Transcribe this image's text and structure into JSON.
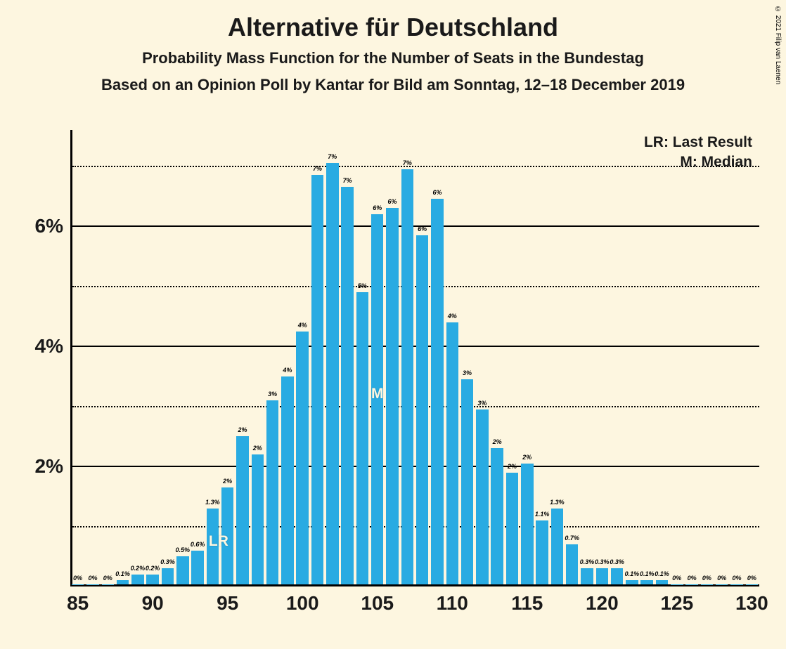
{
  "copyright": "© 2021 Filip van Laenen",
  "titles": {
    "main": "Alternative für Deutschland",
    "sub1": "Probability Mass Function for the Number of Seats in the Bundestag",
    "sub2": "Based on an Opinion Poll by Kantar for Bild am Sonntag, 12–18 December 2019"
  },
  "legend": {
    "lr": "LR: Last Result",
    "m": "M: Median"
  },
  "chart": {
    "type": "bar",
    "bar_color": "#29abe2",
    "background_color": "#fdf6e0",
    "text_color": "#1a1a1a",
    "x_min": 84.5,
    "x_max": 130.5,
    "y_min": 0,
    "y_max": 7.6,
    "y_major_ticks": [
      2,
      4,
      6
    ],
    "y_minor_ticks": [
      1,
      3,
      5,
      7
    ],
    "x_ticks": [
      85,
      90,
      95,
      100,
      105,
      110,
      115,
      120,
      125,
      130
    ],
    "bar_width_ratio": 0.82,
    "bars": [
      {
        "x": 85,
        "v": 0.001,
        "l": "0%"
      },
      {
        "x": 86,
        "v": 0.001,
        "l": "0%"
      },
      {
        "x": 87,
        "v": 0.03,
        "l": "0%"
      },
      {
        "x": 88,
        "v": 0.1,
        "l": "0.1%"
      },
      {
        "x": 89,
        "v": 0.2,
        "l": "0.2%"
      },
      {
        "x": 90,
        "v": 0.2,
        "l": "0.2%"
      },
      {
        "x": 91,
        "v": 0.3,
        "l": "0.3%"
      },
      {
        "x": 92,
        "v": 0.5,
        "l": "0.5%"
      },
      {
        "x": 93,
        "v": 0.6,
        "l": "0.6%"
      },
      {
        "x": 94,
        "v": 1.3,
        "l": "1.3%"
      },
      {
        "x": 95,
        "v": 1.65,
        "l": "2%"
      },
      {
        "x": 96,
        "v": 2.5,
        "l": "2%"
      },
      {
        "x": 97,
        "v": 2.2,
        "l": "2%"
      },
      {
        "x": 98,
        "v": 3.1,
        "l": "3%"
      },
      {
        "x": 99,
        "v": 3.5,
        "l": "4%"
      },
      {
        "x": 100,
        "v": 4.25,
        "l": "4%"
      },
      {
        "x": 101,
        "v": 6.85,
        "l": "7%"
      },
      {
        "x": 102,
        "v": 7.05,
        "l": "7%"
      },
      {
        "x": 103,
        "v": 6.65,
        "l": "7%"
      },
      {
        "x": 104,
        "v": 4.9,
        "l": "5%"
      },
      {
        "x": 105,
        "v": 6.2,
        "l": "6%"
      },
      {
        "x": 106,
        "v": 6.3,
        "l": "6%"
      },
      {
        "x": 107,
        "v": 6.95,
        "l": "7%"
      },
      {
        "x": 108,
        "v": 5.85,
        "l": "6%"
      },
      {
        "x": 109,
        "v": 6.45,
        "l": "6%"
      },
      {
        "x": 110,
        "v": 4.4,
        "l": "4%"
      },
      {
        "x": 111,
        "v": 3.45,
        "l": "3%"
      },
      {
        "x": 112,
        "v": 2.95,
        "l": "3%"
      },
      {
        "x": 113,
        "v": 2.3,
        "l": "2%"
      },
      {
        "x": 114,
        "v": 1.9,
        "l": "2%"
      },
      {
        "x": 115,
        "v": 2.05,
        "l": "2%"
      },
      {
        "x": 116,
        "v": 1.1,
        "l": "1.1%"
      },
      {
        "x": 117,
        "v": 1.3,
        "l": "1.3%"
      },
      {
        "x": 118,
        "v": 0.7,
        "l": "0.7%"
      },
      {
        "x": 119,
        "v": 0.3,
        "l": "0.3%"
      },
      {
        "x": 120,
        "v": 0.3,
        "l": "0.3%"
      },
      {
        "x": 121,
        "v": 0.3,
        "l": "0.3%"
      },
      {
        "x": 122,
        "v": 0.1,
        "l": "0.1%"
      },
      {
        "x": 123,
        "v": 0.1,
        "l": "0.1%"
      },
      {
        "x": 124,
        "v": 0.1,
        "l": "0.1%"
      },
      {
        "x": 125,
        "v": 0.001,
        "l": "0%"
      },
      {
        "x": 126,
        "v": 0.001,
        "l": "0%"
      },
      {
        "x": 127,
        "v": 0.001,
        "l": "0%"
      },
      {
        "x": 128,
        "v": 0.001,
        "l": "0%"
      },
      {
        "x": 129,
        "v": 0.001,
        "l": "0%"
      },
      {
        "x": 130,
        "v": 0.001,
        "l": "0%"
      }
    ],
    "markers": [
      {
        "label": "LR",
        "x": 94.4,
        "y": 0.75
      },
      {
        "label": "M",
        "x": 105,
        "y": 3.2
      }
    ]
  }
}
